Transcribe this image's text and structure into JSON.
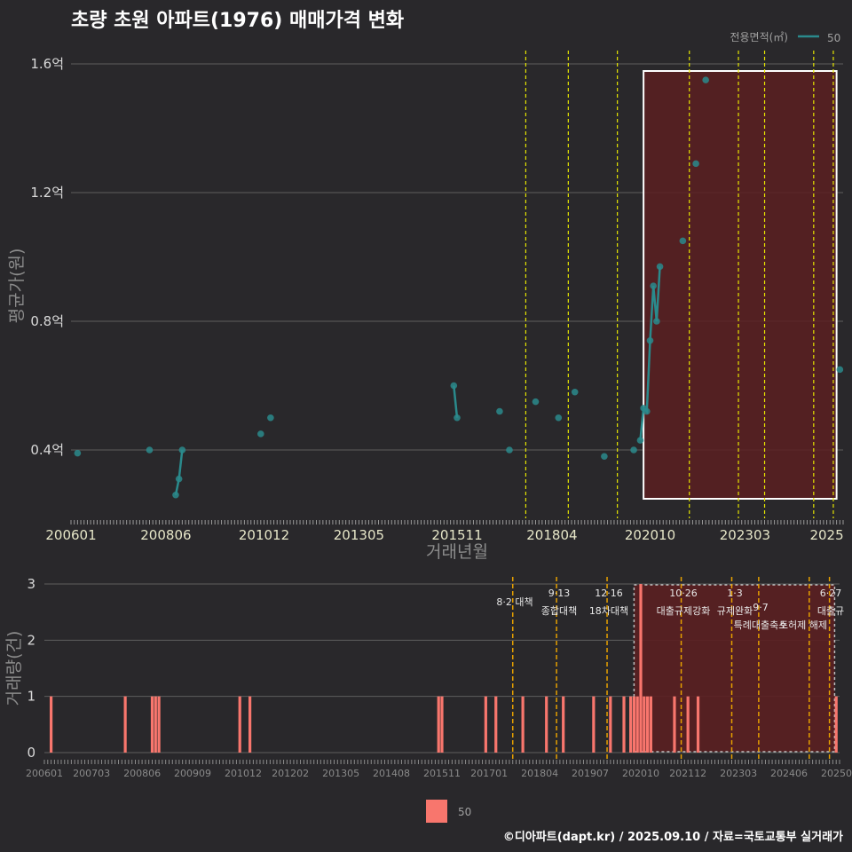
{
  "title": "초량 초원 아파트(1976) 매매가격 변화",
  "caption": "©디아파트(dapt.kr) / 2025.09.10 / 자료=국토교통부 실거래가",
  "colors": {
    "background": "#29282b",
    "line": "#2a8a8c",
    "bar": "#f8766d",
    "policy_line": "#e6e600",
    "policy_line_bottom": "#e6a000",
    "highlight_fill": "#5a1f21",
    "grid": "#555555"
  },
  "chart_data": [
    {
      "type": "line",
      "ylabel": "평균가(원)",
      "xlabel": "거래년월",
      "legend": {
        "title": "전용면적(㎡)",
        "entries": [
          "50"
        ],
        "position": "top-right"
      },
      "y_ticks": [
        0.4,
        0.8,
        1.2,
        1.6
      ],
      "y_tick_labels": [
        "0.4억",
        "0.8억",
        "1.2억",
        "1.6억"
      ],
      "ylim": [
        0.2,
        1.65
      ],
      "x_tick_labels": [
        "200601",
        "200806",
        "201012",
        "201305",
        "201511",
        "201804",
        "202010",
        "202303",
        "2025"
      ],
      "series": [
        {
          "name": "50",
          "points": [
            [
              "2006-03",
              0.39
            ],
            [
              "2008-01",
              0.4
            ],
            [
              "2008-09",
              0.26
            ],
            [
              "2008-10",
              0.31
            ],
            [
              "2008-11",
              0.4
            ],
            [
              "2010-11",
              0.45
            ],
            [
              "2011-02",
              0.5
            ],
            [
              "2015-10",
              0.6
            ],
            [
              "2015-11",
              0.5
            ],
            [
              "2016-12",
              0.52
            ],
            [
              "2017-03",
              0.4
            ],
            [
              "2017-11",
              0.55
            ],
            [
              "2018-06",
              0.5
            ],
            [
              "2018-11",
              0.58
            ],
            [
              "2019-08",
              0.38
            ],
            [
              "2020-05",
              0.4
            ],
            [
              "2020-07",
              0.43
            ],
            [
              "2020-08",
              0.53
            ],
            [
              "2020-09",
              0.52
            ],
            [
              "2020-10",
              0.74
            ],
            [
              "2020-11",
              0.91
            ],
            [
              "2020-12",
              0.8
            ],
            [
              "2021-01",
              0.97
            ],
            [
              "2021-08",
              1.05
            ],
            [
              "2021-12",
              1.29
            ],
            [
              "2022-03",
              1.55
            ],
            [
              "2025-08",
              0.65
            ]
          ],
          "connected_runs": [
            [
              2,
              4
            ],
            [
              7,
              8
            ],
            [
              16,
              22
            ]
          ]
        }
      ],
      "policy_dates": [
        "2017-08",
        "2018-09",
        "2019-12",
        "2021-10",
        "2023-01",
        "2023-09",
        "2024-12",
        "2025-06"
      ],
      "highlight_range": [
        "2020-08",
        "2025-07"
      ]
    },
    {
      "type": "bar",
      "ylabel": "거래량(건)",
      "y_ticks": [
        0,
        1,
        2,
        3
      ],
      "ylim": [
        0,
        3
      ],
      "x_tick_labels": [
        "200601",
        "200703",
        "200806",
        "200909",
        "201012",
        "201202",
        "201305",
        "201408",
        "201511",
        "201701",
        "201804",
        "201907",
        "202010",
        "202112",
        "202303",
        "202406",
        "202509"
      ],
      "legend": {
        "entries": [
          "50"
        ],
        "position": "bottom"
      },
      "volumes": [
        [
          "2006-03",
          1
        ],
        [
          "2008-01",
          1
        ],
        [
          "2008-09",
          1
        ],
        [
          "2008-10",
          1
        ],
        [
          "2008-11",
          1
        ],
        [
          "2010-11",
          1
        ],
        [
          "2011-02",
          1
        ],
        [
          "2015-10",
          1
        ],
        [
          "2015-11",
          1
        ],
        [
          "2016-12",
          1
        ],
        [
          "2017-03",
          1
        ],
        [
          "2017-11",
          1
        ],
        [
          "2018-06",
          1
        ],
        [
          "2018-11",
          1
        ],
        [
          "2019-08",
          1
        ],
        [
          "2020-01",
          1
        ],
        [
          "2020-05",
          1
        ],
        [
          "2020-07",
          1
        ],
        [
          "2020-08",
          1
        ],
        [
          "2020-09",
          1
        ],
        [
          "2020-10",
          3
        ],
        [
          "2020-11",
          1
        ],
        [
          "2020-12",
          1
        ],
        [
          "2021-01",
          1
        ],
        [
          "2021-08",
          1
        ],
        [
          "2021-12",
          1
        ],
        [
          "2022-03",
          1
        ],
        [
          "2025-08",
          1
        ]
      ],
      "policies": [
        {
          "date": "2017-08",
          "label": "8·2 대책",
          "label2": ""
        },
        {
          "date": "2018-09",
          "label": "9·13",
          "label2": "종합대책"
        },
        {
          "date": "2019-12",
          "label": "12·16",
          "label2": "18차대책"
        },
        {
          "date": "2021-10",
          "label": "10·26",
          "label2": "대출규제강화"
        },
        {
          "date": "2023-01",
          "label": "1·3",
          "label2": "규제완화"
        },
        {
          "date": "2023-09",
          "label": "9·7",
          "label2": "특례대출축소"
        },
        {
          "date": "2024-12",
          "label": "",
          "label2": "토허제 해제"
        },
        {
          "date": "2025-06",
          "label": "6·27",
          "label2": "대출규"
        }
      ],
      "highlight_range": [
        "2020-08",
        "2025-07"
      ]
    }
  ]
}
